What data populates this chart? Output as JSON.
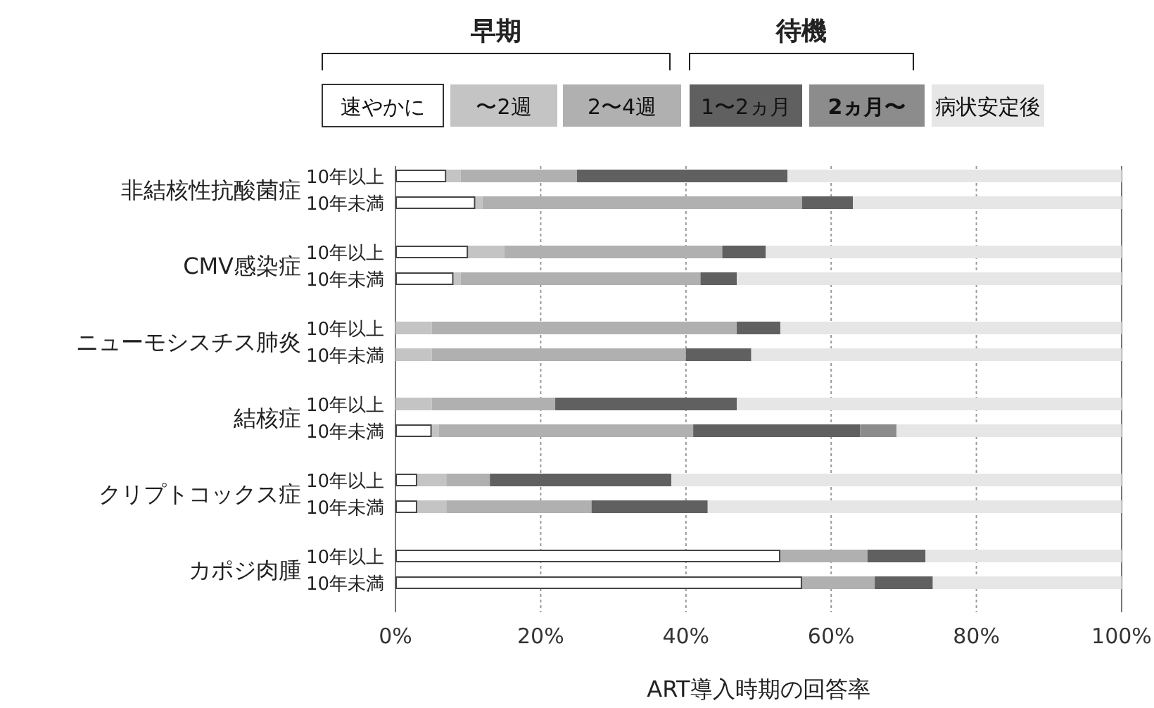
{
  "chart_data": {
    "type": "bar",
    "orientation": "horizontal",
    "stacked": true,
    "xlabel": "ART導入時期の回答率",
    "categories": [
      "10年以上",
      "10年未満",
      "10年以上",
      "10年未満",
      "10年以上",
      "10年未満",
      "10年以上",
      "10年未満",
      "10年以上",
      "10年未満",
      "10年以上",
      "10年未満"
    ],
    "annotations": [
      "非結核性抗酸菌症",
      "CMV感染症",
      "ニューモシスチス肺炎",
      "結核症",
      "クリプトコックス症",
      "カポジ肉腫",
      "早期",
      "待機"
    ],
    "series": [
      {
        "name": "速やかに",
        "color": "#ffffff",
        "values": [
          7,
          11,
          10,
          8,
          0,
          0,
          0,
          5,
          3,
          3,
          53,
          56
        ]
      },
      {
        "name": "〜2週",
        "color": "#c4c4c4",
        "values": [
          2,
          1,
          5,
          1,
          5,
          5,
          5,
          1,
          4,
          4,
          0,
          0
        ]
      },
      {
        "name": "2〜4週",
        "color": "#b0b0b0",
        "values": [
          16,
          44,
          30,
          33,
          42,
          35,
          17,
          35,
          6,
          20,
          12,
          10
        ]
      },
      {
        "name": "1〜2ヵ月",
        "color": "#606060",
        "values": [
          29,
          7,
          6,
          5,
          6,
          9,
          25,
          23,
          25,
          16,
          8,
          8
        ]
      },
      {
        "name": "2ヵ月〜",
        "color": "#8c8c8c",
        "values": [
          0,
          0,
          0,
          0,
          0,
          0,
          0,
          5,
          0,
          0,
          0,
          0
        ]
      },
      {
        "name": "病状安定後",
        "color": "#e6e6e6",
        "values": [
          46,
          37,
          49,
          53,
          47,
          51,
          53,
          31,
          62,
          57,
          27,
          26
        ]
      }
    ],
    "xlim": [
      0,
      100
    ],
    "xticks": [
      {
        "value": 0,
        "label": "0%"
      },
      {
        "value": 20,
        "label": "20%"
      },
      {
        "value": 40,
        "label": "40%"
      },
      {
        "value": 60,
        "label": "60%"
      },
      {
        "value": 80,
        "label": "80%"
      },
      {
        "value": 100,
        "label": "100%"
      }
    ],
    "grid": "x",
    "legend": "top"
  }
}
